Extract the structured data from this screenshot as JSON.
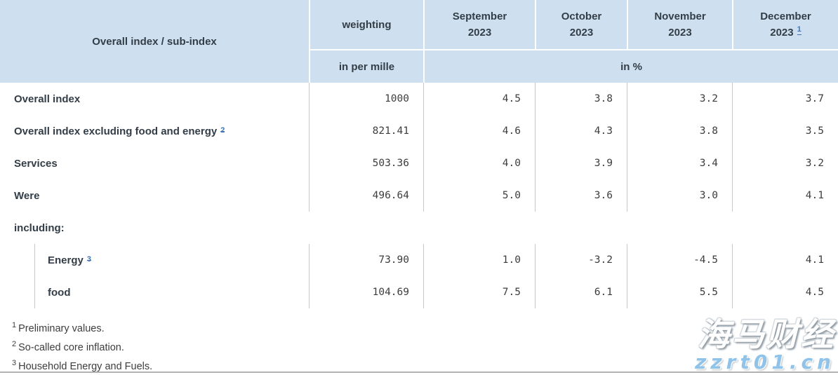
{
  "table": {
    "corner_header": "Overall index / sub-index",
    "weighting_header": "weighting",
    "weighting_unit": "in per mille",
    "values_unit": "in %",
    "months": [
      {
        "line1": "September",
        "line2": "2023",
        "sup": ""
      },
      {
        "line1": "October",
        "line2": "2023",
        "sup": ""
      },
      {
        "line1": "November",
        "line2": "2023",
        "sup": ""
      },
      {
        "line1": "December",
        "line2": "2023",
        "sup": "1"
      }
    ],
    "section_label": "including:",
    "rows": [
      {
        "label": "Overall index",
        "sup": "",
        "weighting": "1000",
        "values": [
          "4.5",
          "3.8",
          "3.2",
          "3.7"
        ]
      },
      {
        "label": "Overall index excluding food and energy",
        "sup": "2",
        "weighting": "821.41",
        "values": [
          "4.6",
          "4.3",
          "3.8",
          "3.5"
        ]
      },
      {
        "label": "Services",
        "sup": "",
        "weighting": "503.36",
        "values": [
          "4.0",
          "3.9",
          "3.4",
          "3.2"
        ]
      },
      {
        "label": "Were",
        "sup": "",
        "weighting": "496.64",
        "values": [
          "5.0",
          "3.6",
          "3.0",
          "4.1"
        ]
      },
      {
        "label": "Energy",
        "sup": "3",
        "weighting": "73.90",
        "values": [
          "1.0",
          "-3.2",
          "-4.5",
          "4.1"
        ]
      },
      {
        "label": "food",
        "sup": "",
        "weighting": "104.69",
        "values": [
          "7.5",
          "6.1",
          "5.5",
          "4.5"
        ]
      }
    ]
  },
  "footnotes": [
    {
      "sup": "1",
      "text": "Preliminary values."
    },
    {
      "sup": "2",
      "text": "So-called core inflation."
    },
    {
      "sup": "3",
      "text": "Household Energy and Fuels."
    }
  ],
  "watermark": {
    "title": "海马财经",
    "url": "zzrt01.cn"
  },
  "colors": {
    "header_bg": "#cee0ef",
    "header_text": "#333d47",
    "link_blue": "#4075b5",
    "border_gray": "#c9c9c9",
    "watermark_blue": "#8fc3ea"
  },
  "chart_data": {
    "type": "table",
    "title": "Overall index / sub-index — inflation rates",
    "columns": [
      "Overall index / sub-index",
      "weighting (in per mille)",
      "September 2023 (in %)",
      "October 2023 (in %)",
      "November 2023 (in %)",
      "December 2023 (in %)"
    ],
    "rows": [
      [
        "Overall index",
        1000,
        4.5,
        3.8,
        3.2,
        3.7
      ],
      [
        "Overall index excluding food and energy",
        821.41,
        4.6,
        4.3,
        3.8,
        3.5
      ],
      [
        "Services",
        503.36,
        4.0,
        3.9,
        3.4,
        3.2
      ],
      [
        "Were",
        496.64,
        5.0,
        3.6,
        3.0,
        4.1
      ],
      [
        "Energy",
        73.9,
        1.0,
        -3.2,
        -4.5,
        4.1
      ],
      [
        "food",
        104.69,
        7.5,
        6.1,
        5.5,
        4.5
      ]
    ]
  }
}
